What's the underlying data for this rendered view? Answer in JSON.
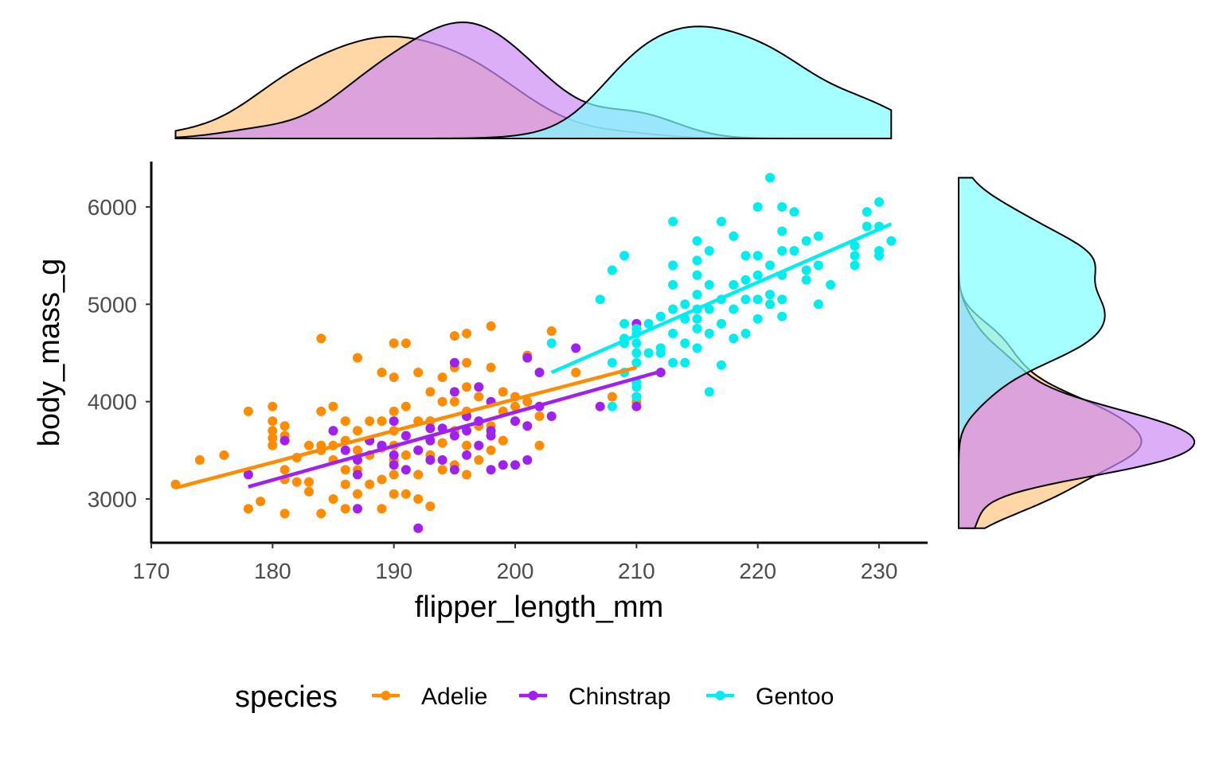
{
  "chart_data": {
    "type": "scatter",
    "xlabel": "flipper_length_mm",
    "ylabel": "body_mass_g",
    "xlim": [
      170,
      234
    ],
    "ylim": [
      2550,
      6450
    ],
    "x_ticks": [
      "170",
      "180",
      "190",
      "200",
      "210",
      "220",
      "230"
    ],
    "y_ticks": [
      "3000",
      "4000",
      "5000",
      "6000"
    ],
    "grid": false,
    "marginal": "density",
    "legend": {
      "title": "species",
      "position": "bottom"
    },
    "series": [
      {
        "name": "Adelie",
        "color": "#FF8C00",
        "fill": "#FFC57F",
        "trend": {
          "x0": 172,
          "y0": 3115,
          "x1": 210,
          "y1": 4350
        },
        "points": [
          [
            172,
            3150
          ],
          [
            174,
            3400
          ],
          [
            176,
            3450
          ],
          [
            178,
            3900
          ],
          [
            178,
            2900
          ],
          [
            179,
            2975
          ],
          [
            180,
            3950
          ],
          [
            180,
            3800
          ],
          [
            180,
            3700
          ],
          [
            180,
            3625
          ],
          [
            180,
            3550
          ],
          [
            181,
            3750
          ],
          [
            181,
            3650
          ],
          [
            181,
            3300
          ],
          [
            181,
            3200
          ],
          [
            181,
            2850
          ],
          [
            182,
            3175
          ],
          [
            182,
            3425
          ],
          [
            183,
            3550
          ],
          [
            183,
            3175
          ],
          [
            183,
            3075
          ],
          [
            184,
            4650
          ],
          [
            184,
            3900
          ],
          [
            184,
            3550
          ],
          [
            184,
            3500
          ],
          [
            184,
            2850
          ],
          [
            185,
            3950
          ],
          [
            185,
            3700
          ],
          [
            185,
            3550
          ],
          [
            185,
            3400
          ],
          [
            185,
            3000
          ],
          [
            186,
            3800
          ],
          [
            186,
            3600
          ],
          [
            186,
            3300
          ],
          [
            186,
            3150
          ],
          [
            186,
            2900
          ],
          [
            187,
            4450
          ],
          [
            187,
            3700
          ],
          [
            187,
            3500
          ],
          [
            187,
            3300
          ],
          [
            187,
            3050
          ],
          [
            188,
            3800
          ],
          [
            188,
            3600
          ],
          [
            188,
            3450
          ],
          [
            188,
            3150
          ],
          [
            189,
            4300
          ],
          [
            189,
            3800
          ],
          [
            189,
            3525
          ],
          [
            189,
            3200
          ],
          [
            189,
            2900
          ],
          [
            190,
            4600
          ],
          [
            190,
            4250
          ],
          [
            190,
            3900
          ],
          [
            190,
            3700
          ],
          [
            190,
            3550
          ],
          [
            190,
            3400
          ],
          [
            190,
            3250
          ],
          [
            190,
            3050
          ],
          [
            191,
            4600
          ],
          [
            191,
            3950
          ],
          [
            191,
            3650
          ],
          [
            191,
            3450
          ],
          [
            191,
            3050
          ],
          [
            192,
            4300
          ],
          [
            192,
            3800
          ],
          [
            192,
            3500
          ],
          [
            192,
            3250
          ],
          [
            192,
            3000
          ],
          [
            193,
            4100
          ],
          [
            193,
            3800
          ],
          [
            193,
            3450
          ],
          [
            193,
            2925
          ],
          [
            194,
            4250
          ],
          [
            194,
            4000
          ],
          [
            194,
            3575
          ],
          [
            194,
            3300
          ],
          [
            195,
            4675
          ],
          [
            195,
            4350
          ],
          [
            195,
            4000
          ],
          [
            195,
            3700
          ],
          [
            195,
            3350
          ],
          [
            196,
            4700
          ],
          [
            196,
            4400
          ],
          [
            196,
            4150
          ],
          [
            196,
            3900
          ],
          [
            196,
            3550
          ],
          [
            196,
            3250
          ],
          [
            197,
            4050
          ],
          [
            197,
            3750
          ],
          [
            197,
            3400
          ],
          [
            198,
            4775
          ],
          [
            198,
            4350
          ],
          [
            198,
            3750
          ],
          [
            198,
            3500
          ],
          [
            199,
            4100
          ],
          [
            199,
            3900
          ],
          [
            199,
            3600
          ],
          [
            200,
            4050
          ],
          [
            200,
            3950
          ],
          [
            201,
            4475
          ],
          [
            201,
            4000
          ],
          [
            202,
            3550
          ],
          [
            202,
            3850
          ],
          [
            203,
            4725
          ],
          [
            205,
            4300
          ],
          [
            210,
            4000
          ],
          [
            208,
            4050
          ]
        ]
      },
      {
        "name": "Chinstrap",
        "color": "#A020F0",
        "fill": "#CC8BF4",
        "trend": {
          "x0": 178,
          "y0": 3125,
          "x1": 212,
          "y1": 4310
        },
        "points": [
          [
            178,
            3250
          ],
          [
            181,
            3600
          ],
          [
            185,
            3700
          ],
          [
            186,
            3500
          ],
          [
            187,
            3400
          ],
          [
            187,
            3250
          ],
          [
            187,
            2900
          ],
          [
            188,
            3600
          ],
          [
            189,
            3550
          ],
          [
            190,
            3800
          ],
          [
            190,
            3450
          ],
          [
            190,
            3350
          ],
          [
            191,
            3300
          ],
          [
            191,
            3650
          ],
          [
            192,
            3500
          ],
          [
            192,
            2700
          ],
          [
            193,
            3725
          ],
          [
            193,
            3600
          ],
          [
            193,
            3400
          ],
          [
            194,
            3725
          ],
          [
            194,
            3400
          ],
          [
            195,
            4400
          ],
          [
            195,
            4100
          ],
          [
            195,
            3650
          ],
          [
            195,
            3300
          ],
          [
            196,
            3850
          ],
          [
            196,
            3700
          ],
          [
            196,
            3450
          ],
          [
            197,
            4150
          ],
          [
            197,
            3550
          ],
          [
            197,
            3800
          ],
          [
            198,
            4000
          ],
          [
            198,
            3650
          ],
          [
            198,
            3300
          ],
          [
            199,
            3350
          ],
          [
            200,
            3800
          ],
          [
            201,
            3750
          ],
          [
            201,
            3400
          ],
          [
            202,
            3950
          ],
          [
            201,
            4450
          ],
          [
            202,
            4300
          ],
          [
            203,
            3850
          ],
          [
            205,
            4550
          ],
          [
            207,
            3950
          ],
          [
            210,
            4800
          ],
          [
            210,
            4050
          ],
          [
            210,
            3950
          ],
          [
            212,
            4300
          ],
          [
            200,
            3350
          ],
          [
            198,
            3700
          ]
        ]
      },
      {
        "name": "Gentoo",
        "color": "#00EEEE",
        "fill": "#7FFFFF",
        "trend": {
          "x0": 203,
          "y0": 4300,
          "x1": 231,
          "y1": 5825
        },
        "points": [
          [
            203,
            4600
          ],
          [
            207,
            5050
          ],
          [
            208,
            3950
          ],
          [
            208,
            5350
          ],
          [
            208,
            4400
          ],
          [
            209,
            5500
          ],
          [
            209,
            4800
          ],
          [
            209,
            4650
          ],
          [
            209,
            4600
          ],
          [
            209,
            4300
          ],
          [
            210,
            4750
          ],
          [
            210,
            4700
          ],
          [
            210,
            4600
          ],
          [
            210,
            4500
          ],
          [
            210,
            4400
          ],
          [
            210,
            4200
          ],
          [
            210,
            4150
          ],
          [
            210,
            4050
          ],
          [
            211,
            4800
          ],
          [
            211,
            4500
          ],
          [
            212,
            4875
          ],
          [
            212,
            4550
          ],
          [
            212,
            4500
          ],
          [
            213,
            5850
          ],
          [
            213,
            5400
          ],
          [
            213,
            5200
          ],
          [
            213,
            4950
          ],
          [
            213,
            4700
          ],
          [
            213,
            4400
          ],
          [
            214,
            5000
          ],
          [
            214,
            4850
          ],
          [
            214,
            4600
          ],
          [
            214,
            4400
          ],
          [
            215,
            5650
          ],
          [
            215,
            5450
          ],
          [
            215,
            5300
          ],
          [
            215,
            5100
          ],
          [
            215,
            4950
          ],
          [
            215,
            4850
          ],
          [
            215,
            4750
          ],
          [
            215,
            4550
          ],
          [
            216,
            5550
          ],
          [
            216,
            5200
          ],
          [
            216,
            4950
          ],
          [
            216,
            4700
          ],
          [
            216,
            4100
          ],
          [
            217,
            5850
          ],
          [
            217,
            5050
          ],
          [
            217,
            4800
          ],
          [
            217,
            4375
          ],
          [
            218,
            5700
          ],
          [
            218,
            5200
          ],
          [
            218,
            4950
          ],
          [
            218,
            4650
          ],
          [
            219,
            5500
          ],
          [
            219,
            5250
          ],
          [
            219,
            5050
          ],
          [
            219,
            4700
          ],
          [
            220,
            6000
          ],
          [
            220,
            5500
          ],
          [
            220,
            5300
          ],
          [
            220,
            5050
          ],
          [
            220,
            4850
          ],
          [
            221,
            6300
          ],
          [
            221,
            5400
          ],
          [
            221,
            5000
          ],
          [
            222,
            6000
          ],
          [
            222,
            5750
          ],
          [
            222,
            5550
          ],
          [
            222,
            5300
          ],
          [
            222,
            5050
          ],
          [
            222,
            4875
          ],
          [
            223,
            5950
          ],
          [
            223,
            5550
          ],
          [
            224,
            5650
          ],
          [
            224,
            5350
          ],
          [
            224,
            5250
          ],
          [
            225,
            5700
          ],
          [
            225,
            5400
          ],
          [
            225,
            5000
          ],
          [
            226,
            5200
          ],
          [
            228,
            5600
          ],
          [
            228,
            5500
          ],
          [
            228,
            5400
          ],
          [
            229,
            5950
          ],
          [
            229,
            5800
          ],
          [
            230,
            6050
          ],
          [
            230,
            5800
          ],
          [
            230,
            5550
          ],
          [
            231,
            5650
          ],
          [
            230,
            5500
          ],
          [
            221,
            5100
          ]
        ]
      }
    ]
  }
}
